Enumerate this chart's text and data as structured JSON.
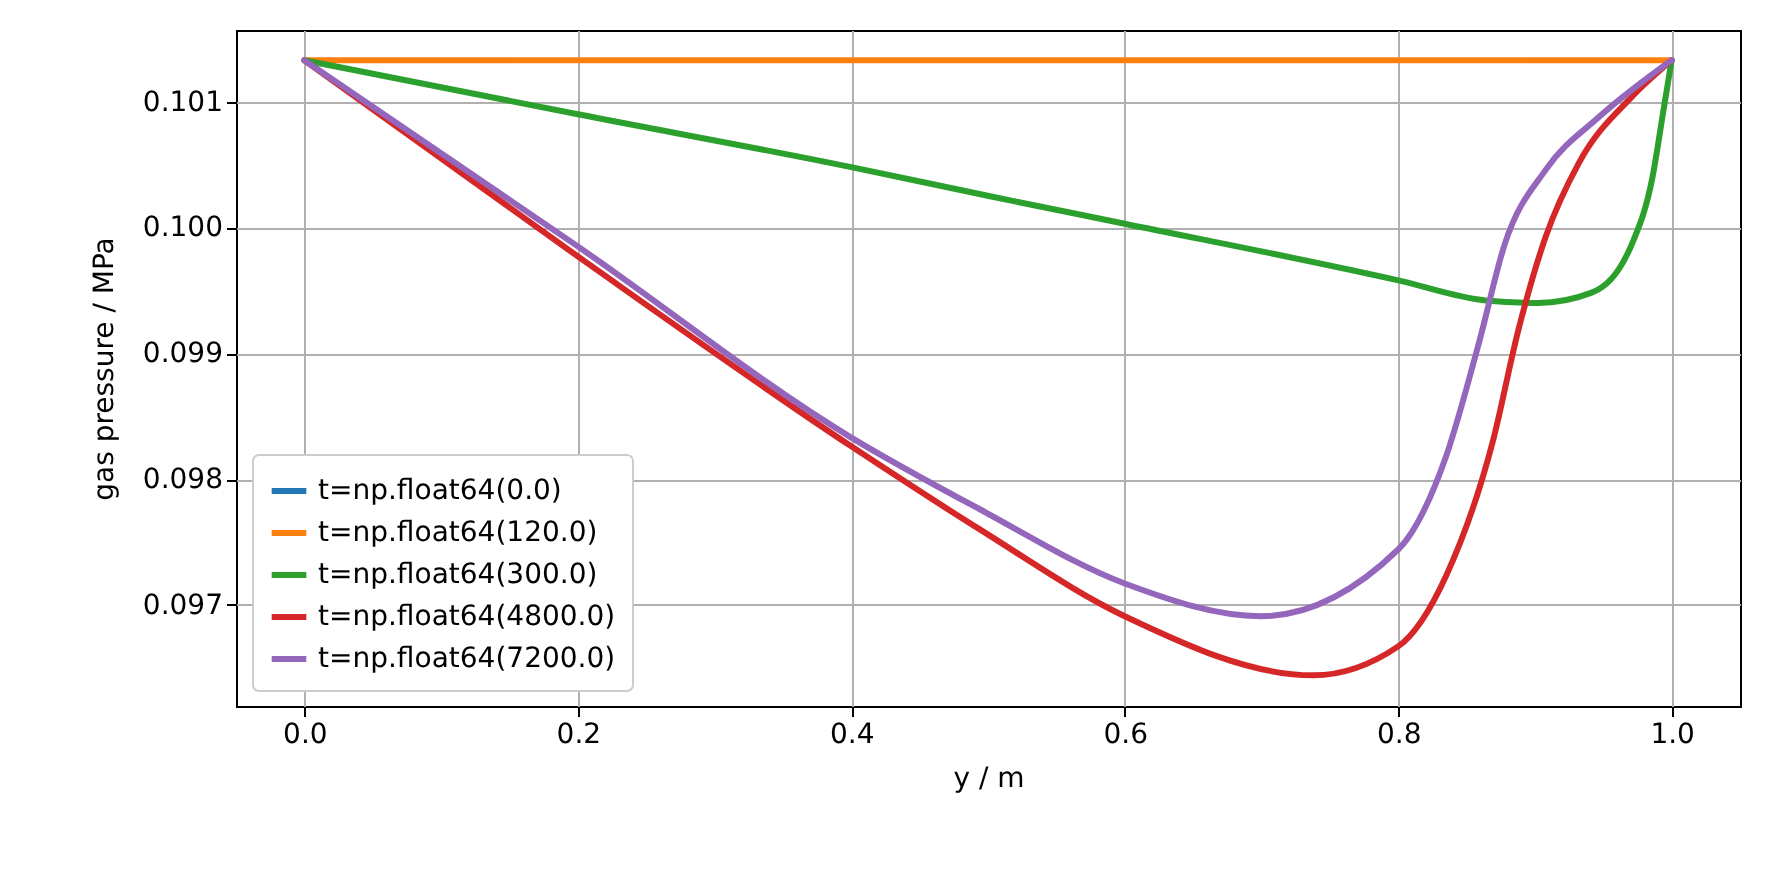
{
  "chart_data": {
    "type": "line",
    "xlabel": "y / m",
    "ylabel": "gas pressure / MPa",
    "xlim": [
      -0.05,
      1.05
    ],
    "ylim": [
      0.096196,
      0.10157
    ],
    "xticks": [
      {
        "value": 0,
        "label": "0.0"
      },
      0.2,
      0.4,
      0.6,
      0.8,
      {
        "value": 1,
        "label": "1.0"
      }
    ],
    "yticks": [
      0.097,
      0.098,
      0.099,
      {
        "value": 0.1,
        "label": "0.100"
      },
      0.101
    ],
    "grid": true,
    "legend": "bottom left",
    "line_style": "solid",
    "marker": "none",
    "series": [
      {
        "name": "t=np.float64(0.0)",
        "color": "#1f77b4"
      },
      {
        "name": "t=np.float64(120.0)",
        "color": "#ff7f0e",
        "x": [
          0,
          1
        ],
        "values": [
          0.10133,
          0.10133
        ]
      },
      {
        "name": "t=np.float64(300.0)",
        "color": "#2ca02c",
        "x": [
          0,
          0.2,
          0.4,
          0.505,
          0.6,
          0.8,
          0.864,
          0.9025,
          0.941,
          0.971,
          0.986,
          0.994,
          1.0
        ],
        "values": [
          0.10133,
          0.1009,
          0.10048,
          0.10024,
          0.10003,
          0.09958,
          0.09942,
          0.0994,
          0.09948,
          0.09987,
          0.1004,
          0.10093,
          0.10133
        ]
      },
      {
        "name": "t=np.float64(4800.0)",
        "color": "#d62728",
        "x": [
          0,
          0.2,
          0.4,
          0.494,
          0.6,
          0.738,
          0.8,
          0.835,
          0.869,
          0.888,
          0.908,
          0.932,
          0.971,
          1.0
        ],
        "values": [
          0.10133,
          0.09977,
          0.09826,
          0.0976,
          0.09691,
          0.09644,
          0.09667,
          0.09723,
          0.09829,
          0.09919,
          0.09993,
          0.10051,
          0.10104,
          0.10133
        ]
      },
      {
        "name": "t=np.float64(7200.0)",
        "color": "#9467bd",
        "x": [
          0,
          0.2,
          0.4,
          0.494,
          0.6,
          0.6996,
          0.8,
          0.835,
          0.859,
          0.878,
          0.908,
          0.947,
          1.0
        ],
        "values": [
          0.10133,
          0.09985,
          0.09833,
          0.09776,
          0.09717,
          0.09691,
          0.09744,
          0.09818,
          0.09908,
          0.09987,
          0.10046,
          0.10088,
          0.10133
        ]
      }
    ]
  }
}
